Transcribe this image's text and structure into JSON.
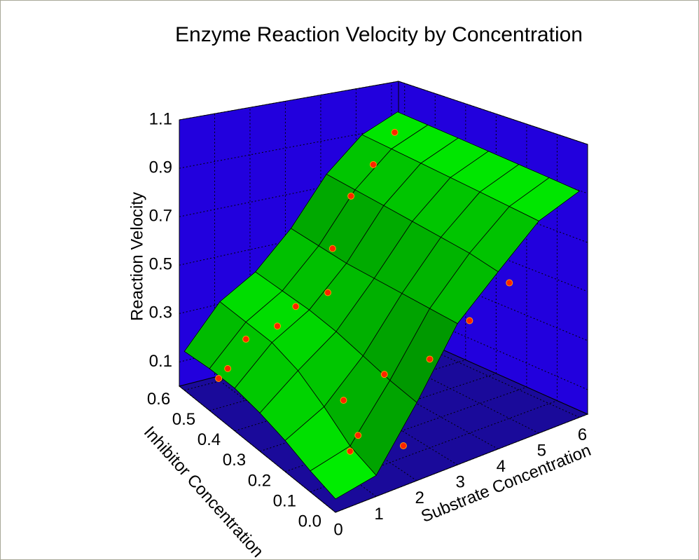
{
  "chart_data": {
    "type": "surface3d",
    "title": "Enzyme Reaction Velocity by Concentration",
    "xlabel": "Substrate Concentration",
    "ylabel": "Inhibitor Concentration",
    "zlabel": "Reaction Velocity",
    "xlim": [
      0,
      6.2
    ],
    "xticks": [
      0,
      1,
      2,
      3,
      4,
      5,
      6
    ],
    "ylim": [
      0,
      0.62
    ],
    "yticks": [
      {
        "value": 0,
        "label": "0.0"
      },
      0.1,
      0.2,
      0.3,
      0.4,
      0.5,
      0.6
    ],
    "zlim": [
      0,
      1.1
    ],
    "zticks": [
      0.1,
      0.3,
      0.5,
      0.7,
      0.9,
      1.1
    ],
    "wall_color": "#2200dd",
    "floor_color": "#1a0a9a",
    "surface": {
      "color": "#00cc00",
      "x": [
        0,
        1,
        2,
        3,
        4,
        5,
        6
      ],
      "y": [
        0,
        0.1,
        0.2,
        0.3,
        0.4,
        0.5,
        0.6
      ],
      "z": [
        [
          0.05,
          0.08,
          0.3,
          0.55,
          0.7,
          0.85,
          0.92
        ],
        [
          0.08,
          0.12,
          0.32,
          0.55,
          0.72,
          0.86,
          0.93
        ],
        [
          0.12,
          0.2,
          0.35,
          0.55,
          0.73,
          0.87,
          0.94
        ],
        [
          0.15,
          0.27,
          0.38,
          0.55,
          0.74,
          0.88,
          0.95
        ],
        [
          0.17,
          0.31,
          0.4,
          0.55,
          0.75,
          0.89,
          0.96
        ],
        [
          0.17,
          0.32,
          0.41,
          0.56,
          0.76,
          0.9,
          0.97
        ],
        [
          0.16,
          0.33,
          0.42,
          0.57,
          0.77,
          0.91,
          0.98
        ]
      ]
    },
    "points": {
      "color": "#ff2200",
      "x": [
        0.25,
        0.5,
        1.0,
        1.5,
        2.0,
        2.5,
        3.0,
        3.5,
        4.5,
        5.5,
        1.0,
        1.2,
        1.5,
        2.0,
        2.2,
        3.0,
        4.0,
        5.0
      ],
      "y": [
        0.5,
        0.5,
        0.5,
        0.45,
        0.45,
        0.4,
        0.45,
        0.45,
        0.5,
        0.55,
        0.1,
        0.1,
        0.2,
        0.05,
        0.15,
        0.1,
        0.1,
        0.1
      ],
      "z": [
        0.12,
        0.15,
        0.25,
        0.32,
        0.38,
        0.45,
        0.58,
        0.78,
        0.85,
        0.93,
        0.1,
        0.15,
        0.2,
        0.1,
        0.3,
        0.35,
        0.45,
        0.55
      ]
    }
  }
}
